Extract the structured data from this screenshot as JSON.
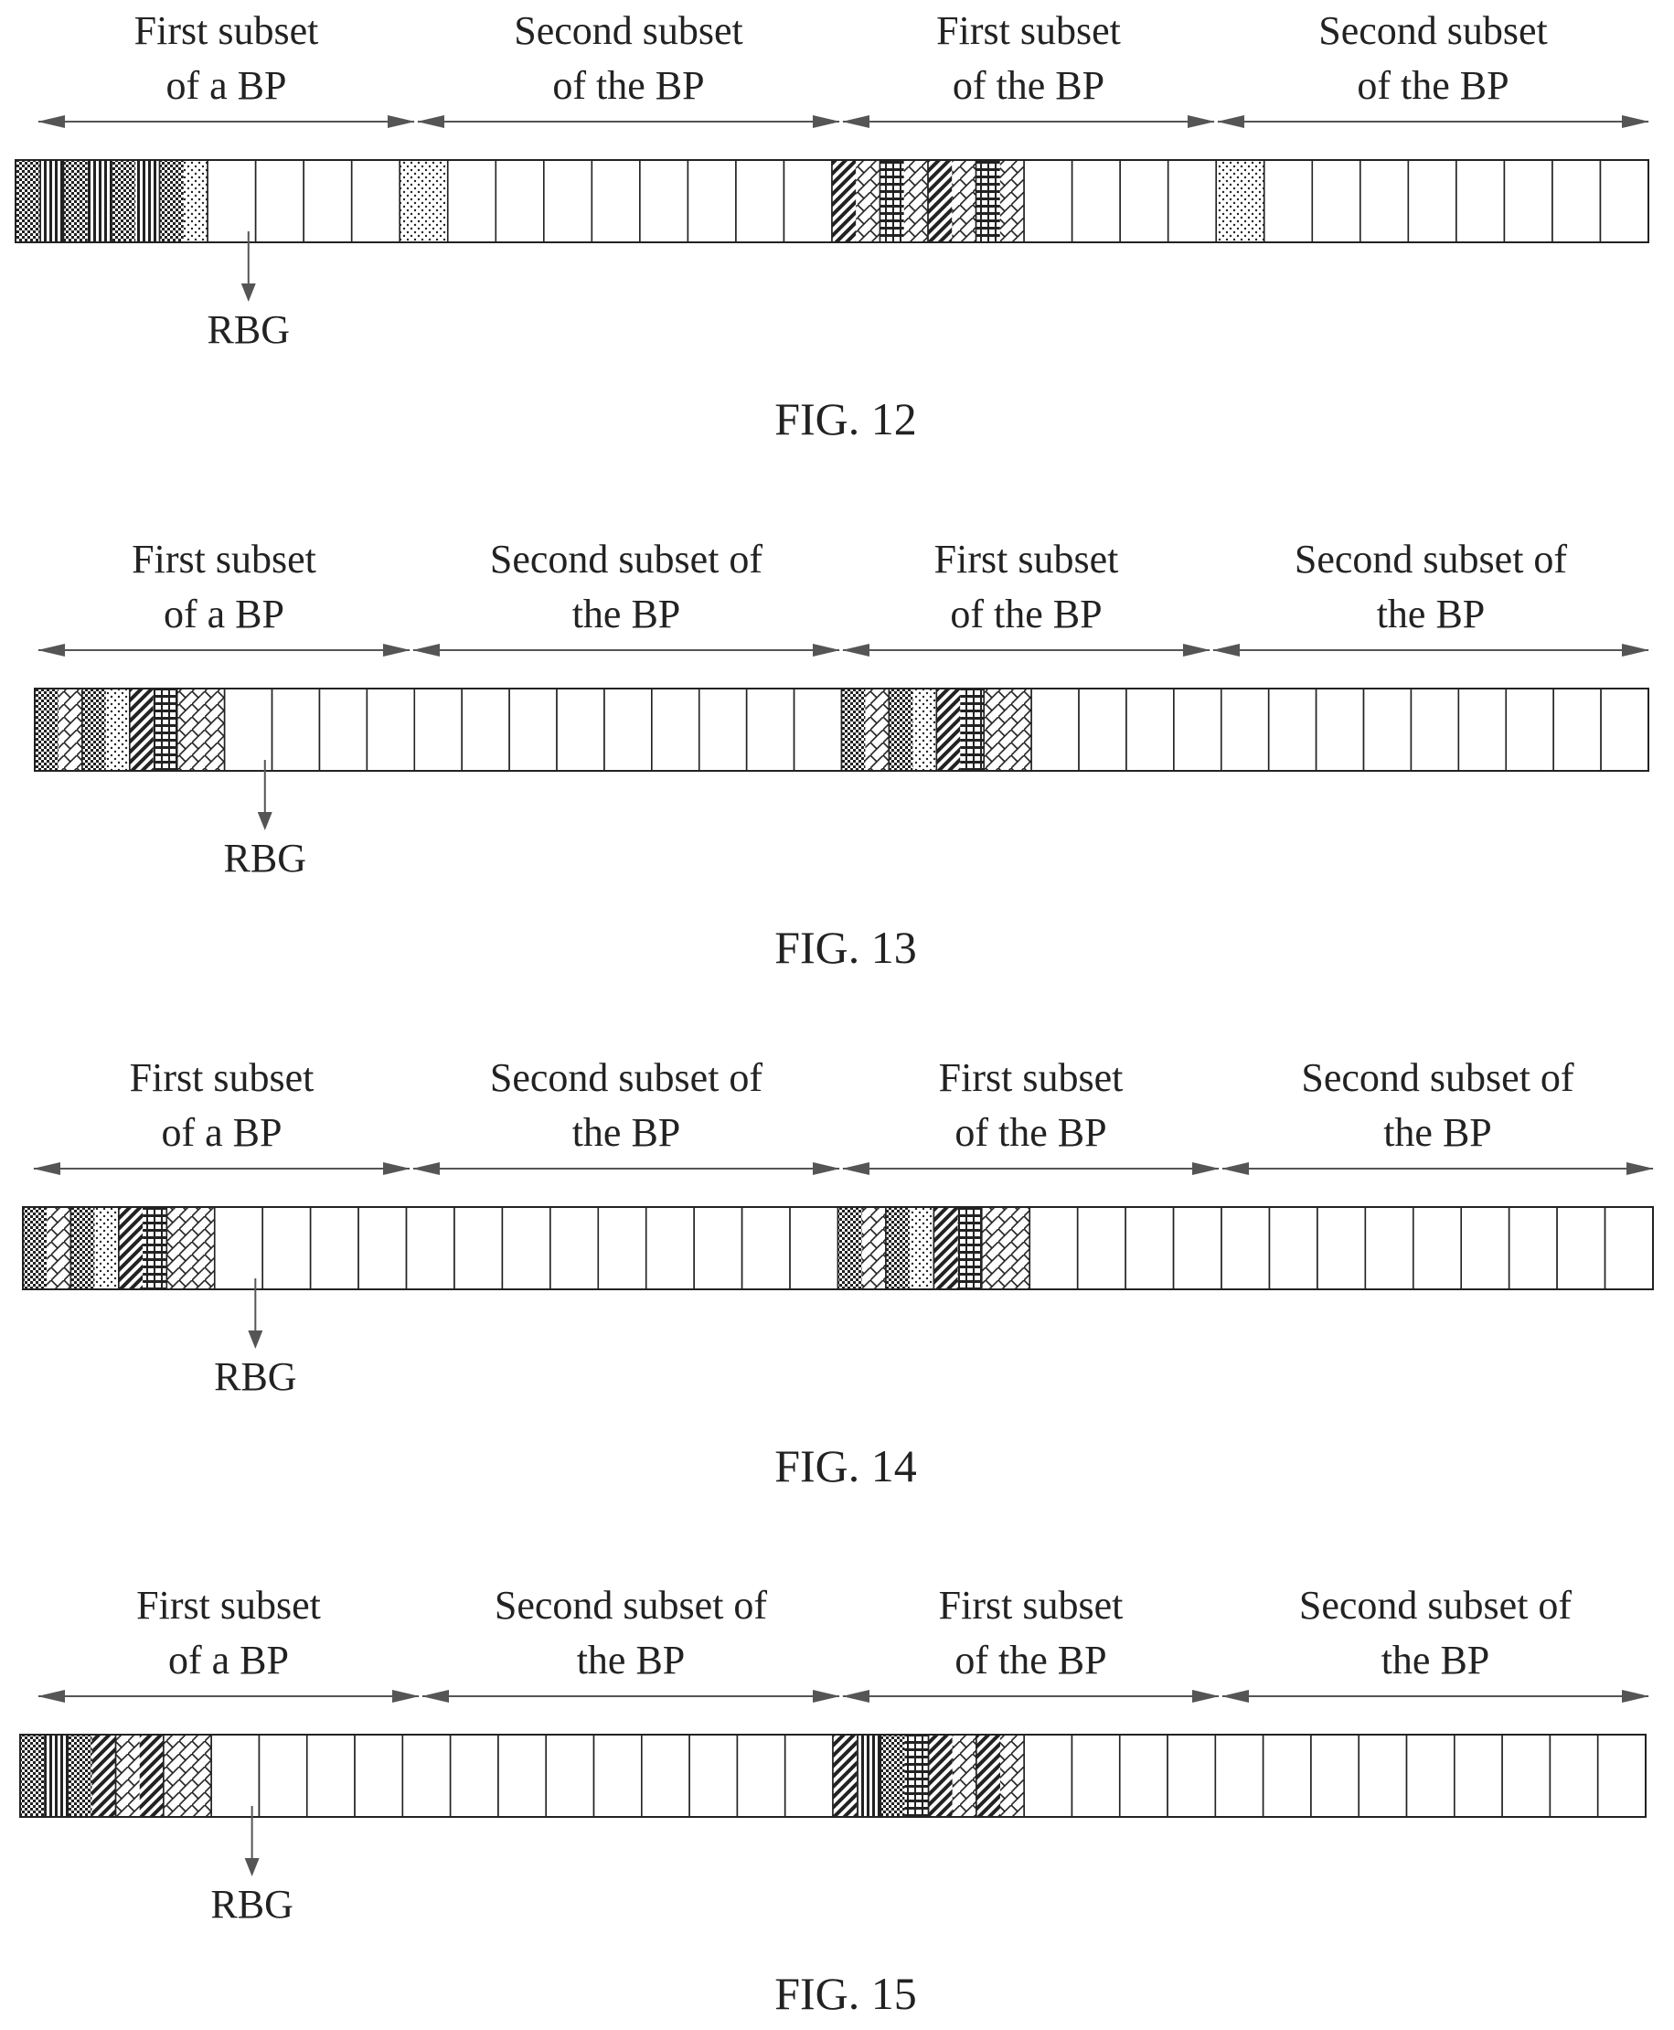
{
  "colors": {
    "ink": "#222222",
    "arrow": "#555555",
    "background": "#ffffff"
  },
  "figures": [
    {
      "caption": "FIG. 12",
      "rbg_label": "RBG",
      "section_labels": [
        [
          "First subset",
          "of a BP"
        ],
        [
          "Second subset",
          "of the BP"
        ],
        [
          "First subset",
          "of the BP"
        ],
        [
          "Second subset",
          "of the BP"
        ]
      ],
      "sections": [
        {
          "rbg_count": 8,
          "shaded_rbgs": 4,
          "patterns": [
            "pat-dense",
            "pat-vbar",
            "pat-dense",
            "pat-vbar",
            "pat-dense",
            "pat-vbar",
            "pat-dense",
            "pat-dots"
          ]
        },
        {
          "rbg_count": 9,
          "shaded_rbgs": 1,
          "patterns": [
            "pat-dots"
          ]
        },
        {
          "rbg_count": 8,
          "shaded_rbgs": 4,
          "patterns": [
            "pat-diag",
            "pat-zig",
            "pat-hbar",
            "pat-zig",
            "pat-diag",
            "pat-zig",
            "pat-hbar",
            "pat-zig"
          ]
        },
        {
          "rbg_count": 9,
          "shaded_rbgs": 1,
          "patterns": [
            "pat-dots"
          ]
        }
      ]
    },
    {
      "caption": "FIG. 13",
      "rbg_label": "RBG",
      "section_labels": [
        [
          "First subset",
          "of a BP"
        ],
        [
          "Second subset of",
          "the BP"
        ],
        [
          "First subset",
          "of the BP"
        ],
        [
          "Second subset of",
          "the BP"
        ]
      ],
      "sections": [
        {
          "rbg_count": 8,
          "shaded_rbgs": 4,
          "patterns": [
            "pat-dense",
            "pat-zig",
            "pat-dense",
            "pat-dots",
            "pat-diag",
            "pat-hbar",
            "pat-zig",
            "pat-zig"
          ]
        },
        {
          "rbg_count": 9,
          "shaded_rbgs": 0,
          "patterns": []
        },
        {
          "rbg_count": 8,
          "shaded_rbgs": 4,
          "patterns": [
            "pat-dense",
            "pat-zig",
            "pat-dense",
            "pat-dots",
            "pat-diag",
            "pat-hbar",
            "pat-zig",
            "pat-zig"
          ]
        },
        {
          "rbg_count": 9,
          "shaded_rbgs": 0,
          "patterns": []
        }
      ]
    },
    {
      "caption": "FIG. 14",
      "rbg_label": "RBG",
      "section_labels": [
        [
          "First subset",
          "of a BP"
        ],
        [
          "Second subset of",
          "the BP"
        ],
        [
          "First subset",
          "of the BP"
        ],
        [
          "Second subset of",
          "the BP"
        ]
      ],
      "sections": [
        {
          "rbg_count": 8,
          "shaded_rbgs": 4,
          "patterns": [
            "pat-dense",
            "pat-zig",
            "pat-dense",
            "pat-dots",
            "pat-diag",
            "pat-hbar",
            "pat-zig",
            "pat-zig"
          ]
        },
        {
          "rbg_count": 9,
          "shaded_rbgs": 0,
          "patterns": []
        },
        {
          "rbg_count": 8,
          "shaded_rbgs": 4,
          "patterns": [
            "pat-dense",
            "pat-zig",
            "pat-dense",
            "pat-dots",
            "pat-diag",
            "pat-hbar",
            "pat-zig",
            "pat-zig"
          ]
        },
        {
          "rbg_count": 9,
          "shaded_rbgs": 0,
          "patterns": []
        }
      ]
    },
    {
      "caption": "FIG. 15",
      "rbg_label": "RBG",
      "section_labels": [
        [
          "First subset",
          "of a BP"
        ],
        [
          "Second subset of",
          "the BP"
        ],
        [
          "First subset",
          "of the BP"
        ],
        [
          "Second subset of",
          "the BP"
        ]
      ],
      "sections": [
        {
          "rbg_count": 8,
          "shaded_rbgs": 4,
          "patterns": [
            "pat-dense",
            "pat-vbar",
            "pat-dense",
            "pat-diag",
            "pat-zig",
            "pat-diag",
            "pat-zig",
            "pat-zig"
          ]
        },
        {
          "rbg_count": 9,
          "shaded_rbgs": 0,
          "patterns": []
        },
        {
          "rbg_count": 8,
          "shaded_rbgs": 4,
          "patterns": [
            "pat-diag",
            "pat-vbar",
            "pat-dense",
            "pat-hbar",
            "pat-diag",
            "pat-zig",
            "pat-diag",
            "pat-zig"
          ]
        },
        {
          "rbg_count": 9,
          "shaded_rbgs": 0,
          "patterns": []
        }
      ]
    }
  ]
}
